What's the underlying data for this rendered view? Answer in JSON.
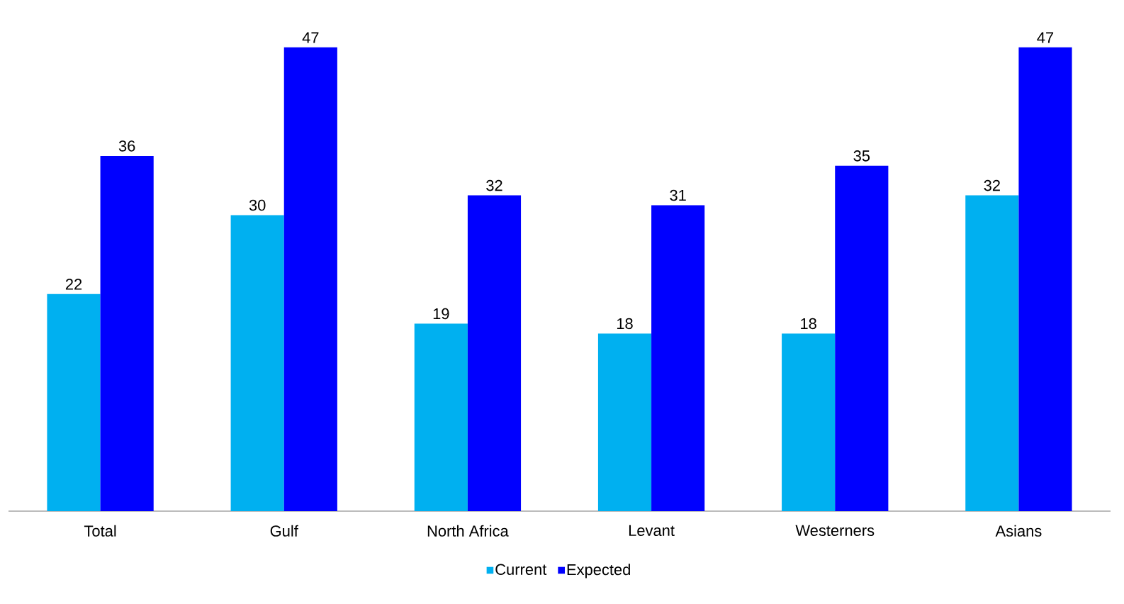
{
  "chart_data": {
    "type": "bar",
    "categories": [
      "Total",
      "Gulf",
      "North Africa",
      "Levant",
      "Westerners",
      "Asians"
    ],
    "series": [
      {
        "name": "Current",
        "color": "#00b0f0",
        "values": [
          22,
          30,
          19,
          18,
          18,
          32
        ]
      },
      {
        "name": "Expected",
        "color": "#0000ff",
        "values": [
          36,
          47,
          32,
          31,
          35,
          47
        ]
      }
    ],
    "data_labels": true,
    "legend": "bottom",
    "grid": false
  }
}
